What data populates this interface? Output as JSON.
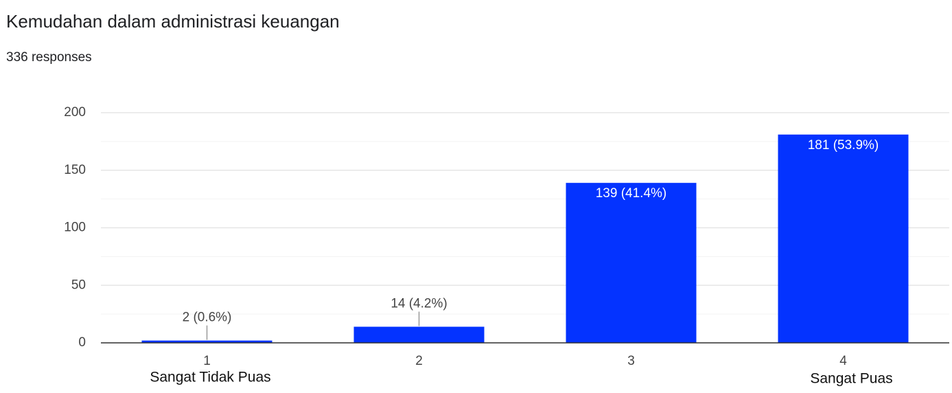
{
  "chart_data": {
    "type": "bar",
    "title": "Kemudahan dalam administrasi keuangan",
    "subtitle": "336 responses",
    "categories": [
      "1",
      "2",
      "3",
      "4"
    ],
    "values": [
      2,
      14,
      139,
      181
    ],
    "value_labels": [
      "2 (0.6%)",
      "14 (4.2%)",
      "139 (41.4%)",
      "181 (53.9%)"
    ],
    "scale_labels": {
      "low": "Sangat Tidak Puas",
      "high": "Sangat Puas"
    },
    "color": "#0433ff",
    "ylim": [
      0,
      200
    ],
    "yticks": [
      0,
      50,
      100,
      150,
      200
    ],
    "minor_yticks": [
      25,
      75,
      125,
      175
    ],
    "grid": true
  }
}
